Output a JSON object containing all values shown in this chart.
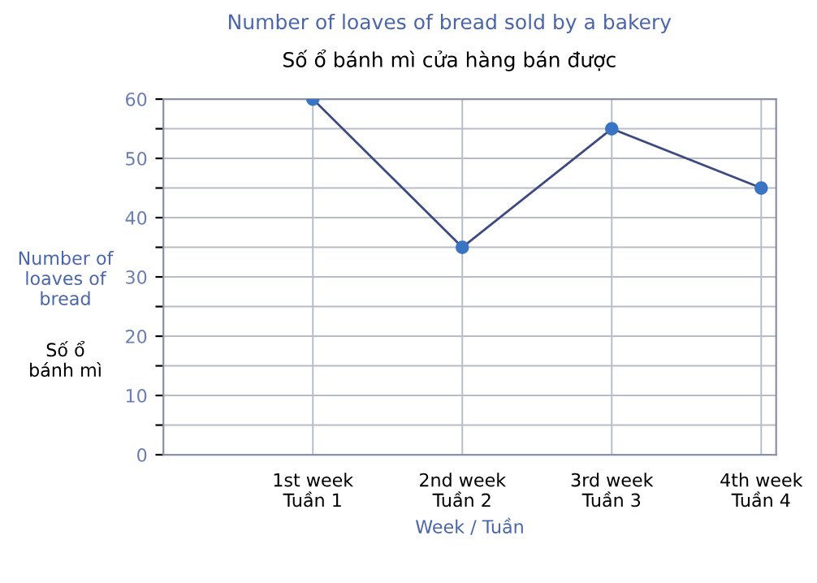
{
  "chart_data": {
    "type": "line",
    "title": "Number of loaves of bread sold by a bakery",
    "subtitle": "Số ổ bánh mì cửa hàng bán được",
    "xlabel": "Week / Tuần",
    "ylabel": "Number of loaves of bread",
    "annotations": [
      "Số ổ bánh mì"
    ],
    "categories": [
      "1st week\nTuần 1",
      "2nd week\nTuần 2",
      "3rd week\nTuần 3",
      "4th week\nTuần 4"
    ],
    "series": [
      {
        "color": "#3a75c4",
        "values": [
          60,
          35,
          55,
          45
        ]
      }
    ],
    "ylim": [
      0,
      60
    ],
    "yticks": [
      0,
      {
        "value": 5,
        "label": null
      },
      10,
      {
        "value": 15,
        "label": null
      },
      20,
      {
        "value": 25,
        "label": null
      },
      30,
      {
        "value": 35,
        "label": null
      },
      40,
      {
        "value": 45,
        "label": null
      },
      50,
      {
        "value": 55,
        "label": null
      },
      60
    ],
    "grid": true,
    "marker": "circle",
    "line_style": "solid",
    "legend": false
  }
}
